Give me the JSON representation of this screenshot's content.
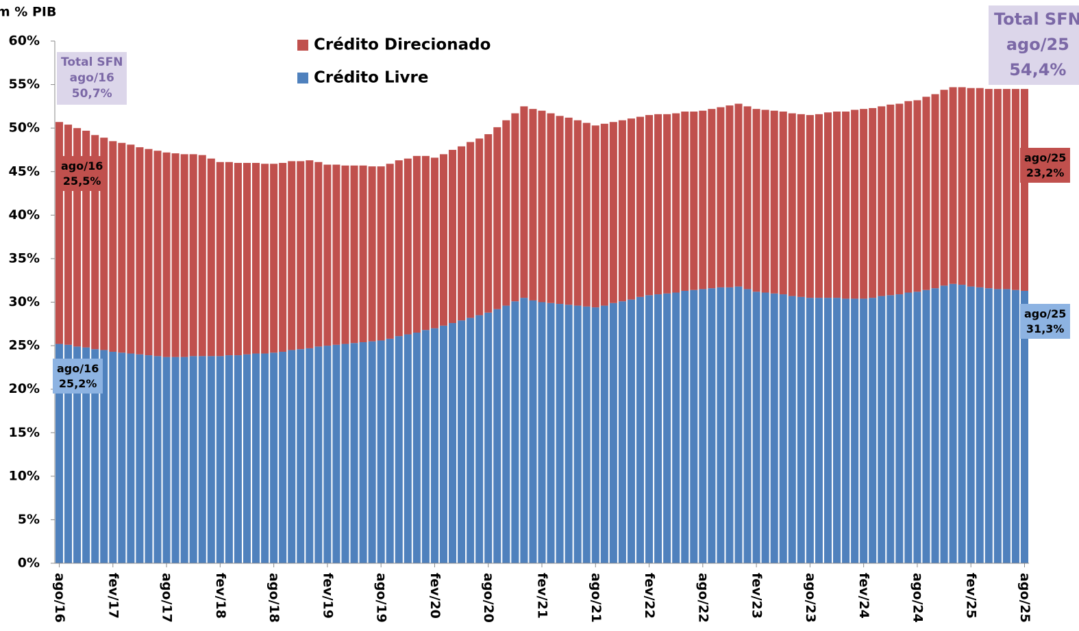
{
  "chart_data": {
    "type": "stacked_bar",
    "y_label": "em % PIB",
    "categories": [
      "ago/16",
      null,
      null,
      null,
      null,
      null,
      "fev/17",
      null,
      null,
      null,
      null,
      null,
      "ago/17",
      null,
      null,
      null,
      null,
      null,
      "fev/18",
      null,
      null,
      null,
      null,
      null,
      "ago/18",
      null,
      null,
      null,
      null,
      null,
      "fev/19",
      null,
      null,
      null,
      null,
      null,
      "ago/19",
      null,
      null,
      null,
      null,
      null,
      "fev/20",
      null,
      null,
      null,
      null,
      null,
      "ago/20",
      null,
      null,
      null,
      null,
      null,
      "fev/21",
      null,
      null,
      null,
      null,
      null,
      "ago/21",
      null,
      null,
      null,
      null,
      null,
      "fev/22",
      null,
      null,
      null,
      null,
      null,
      "ago/22",
      null,
      null,
      null,
      null,
      null,
      "fev/23",
      null,
      null,
      null,
      null,
      null,
      "ago/23",
      null,
      null,
      null,
      null,
      null,
      "fev/24",
      null,
      null,
      null,
      null,
      null,
      "ago/24",
      null,
      null,
      null,
      null,
      null,
      "fev/25",
      null,
      null,
      null,
      null,
      null,
      "ago/25"
    ],
    "series": [
      {
        "name": "Crédito Livre",
        "color": "#4f81bd",
        "values": [
          25.2,
          25.1,
          24.9,
          24.8,
          24.6,
          24.5,
          24.3,
          24.2,
          24.1,
          24.0,
          23.9,
          23.8,
          23.7,
          23.7,
          23.7,
          23.8,
          23.8,
          23.8,
          23.8,
          23.9,
          23.9,
          24.0,
          24.1,
          24.1,
          24.2,
          24.3,
          24.5,
          24.6,
          24.7,
          24.9,
          25.0,
          25.1,
          25.2,
          25.3,
          25.4,
          25.5,
          25.6,
          25.8,
          26.1,
          26.3,
          26.5,
          26.8,
          27.0,
          27.3,
          27.6,
          27.9,
          28.2,
          28.5,
          28.8,
          29.2,
          29.6,
          30.1,
          30.5,
          30.2,
          30.0,
          29.9,
          29.8,
          29.7,
          29.6,
          29.5,
          29.4,
          29.6,
          29.9,
          30.1,
          30.3,
          30.6,
          30.8,
          30.9,
          31.0,
          31.1,
          31.3,
          31.4,
          31.5,
          31.6,
          31.7,
          31.7,
          31.8,
          31.5,
          31.2,
          31.1,
          31.0,
          30.9,
          30.7,
          30.6,
          30.5,
          30.5,
          30.5,
          30.5,
          30.4,
          30.4,
          30.4,
          30.5,
          30.7,
          30.8,
          30.9,
          31.1,
          31.2,
          31.4,
          31.6,
          31.9,
          32.1,
          32.0,
          31.8,
          31.7,
          31.6,
          31.5,
          31.5,
          31.4,
          31.3
        ]
      },
      {
        "name": "Crédito Direcionado",
        "color": "#c0504d",
        "values": [
          25.5,
          25.3,
          25.1,
          24.9,
          24.6,
          24.4,
          24.2,
          24.1,
          24.0,
          23.8,
          23.7,
          23.6,
          23.5,
          23.4,
          23.3,
          23.2,
          23.1,
          22.7,
          22.3,
          22.2,
          22.1,
          22.0,
          21.9,
          21.8,
          21.7,
          21.7,
          21.7,
          21.6,
          21.6,
          21.2,
          20.8,
          20.7,
          20.5,
          20.4,
          20.3,
          20.1,
          20.0,
          20.1,
          20.2,
          20.2,
          20.3,
          20.0,
          19.6,
          19.7,
          19.9,
          20.0,
          20.2,
          20.3,
          20.5,
          20.9,
          21.3,
          21.6,
          22.0,
          22.0,
          22.0,
          21.8,
          21.6,
          21.5,
          21.3,
          21.1,
          20.9,
          20.9,
          20.8,
          20.8,
          20.8,
          20.7,
          20.7,
          20.7,
          20.6,
          20.6,
          20.6,
          20.5,
          20.5,
          20.6,
          20.7,
          20.9,
          21.0,
          21.0,
          21.0,
          21.0,
          21.0,
          21.0,
          21.0,
          21.0,
          21.0,
          21.1,
          21.3,
          21.4,
          21.5,
          21.7,
          21.8,
          21.8,
          21.8,
          21.9,
          21.9,
          22.0,
          22.0,
          22.2,
          22.3,
          22.5,
          22.6,
          22.7,
          22.8,
          22.9,
          22.9,
          23.0,
          23.0,
          23.1,
          23.2
        ]
      }
    ],
    "ylim": [
      0,
      60
    ],
    "yticks": [
      {
        "value": 0,
        "label": "0%"
      },
      {
        "value": 5,
        "label": "5%"
      },
      {
        "value": 10,
        "label": "10%"
      },
      {
        "value": 15,
        "label": "15%"
      },
      {
        "value": 20,
        "label": "20%"
      },
      {
        "value": 25,
        "label": "25%"
      },
      {
        "value": 30,
        "label": "30%"
      },
      {
        "value": 35,
        "label": "35%"
      },
      {
        "value": 40,
        "label": "40%"
      },
      {
        "value": 45,
        "label": "45%"
      },
      {
        "value": 50,
        "label": "50%"
      },
      {
        "value": 55,
        "label": "55%"
      },
      {
        "value": 60,
        "label": "60%"
      }
    ],
    "annotations": [
      {
        "lines": [
          "Total SFN",
          "ago/16",
          "50,7%"
        ]
      },
      {
        "lines": [
          "ago/16",
          "25,5%"
        ]
      },
      {
        "lines": [
          "ago/16",
          "25,2%"
        ]
      },
      {
        "lines": [
          "Total SFN",
          "ago/25",
          "54,4%"
        ]
      },
      {
        "lines": [
          "ago/25",
          "23,2%"
        ]
      },
      {
        "lines": [
          "ago/25",
          "31,3%"
        ]
      }
    ]
  }
}
